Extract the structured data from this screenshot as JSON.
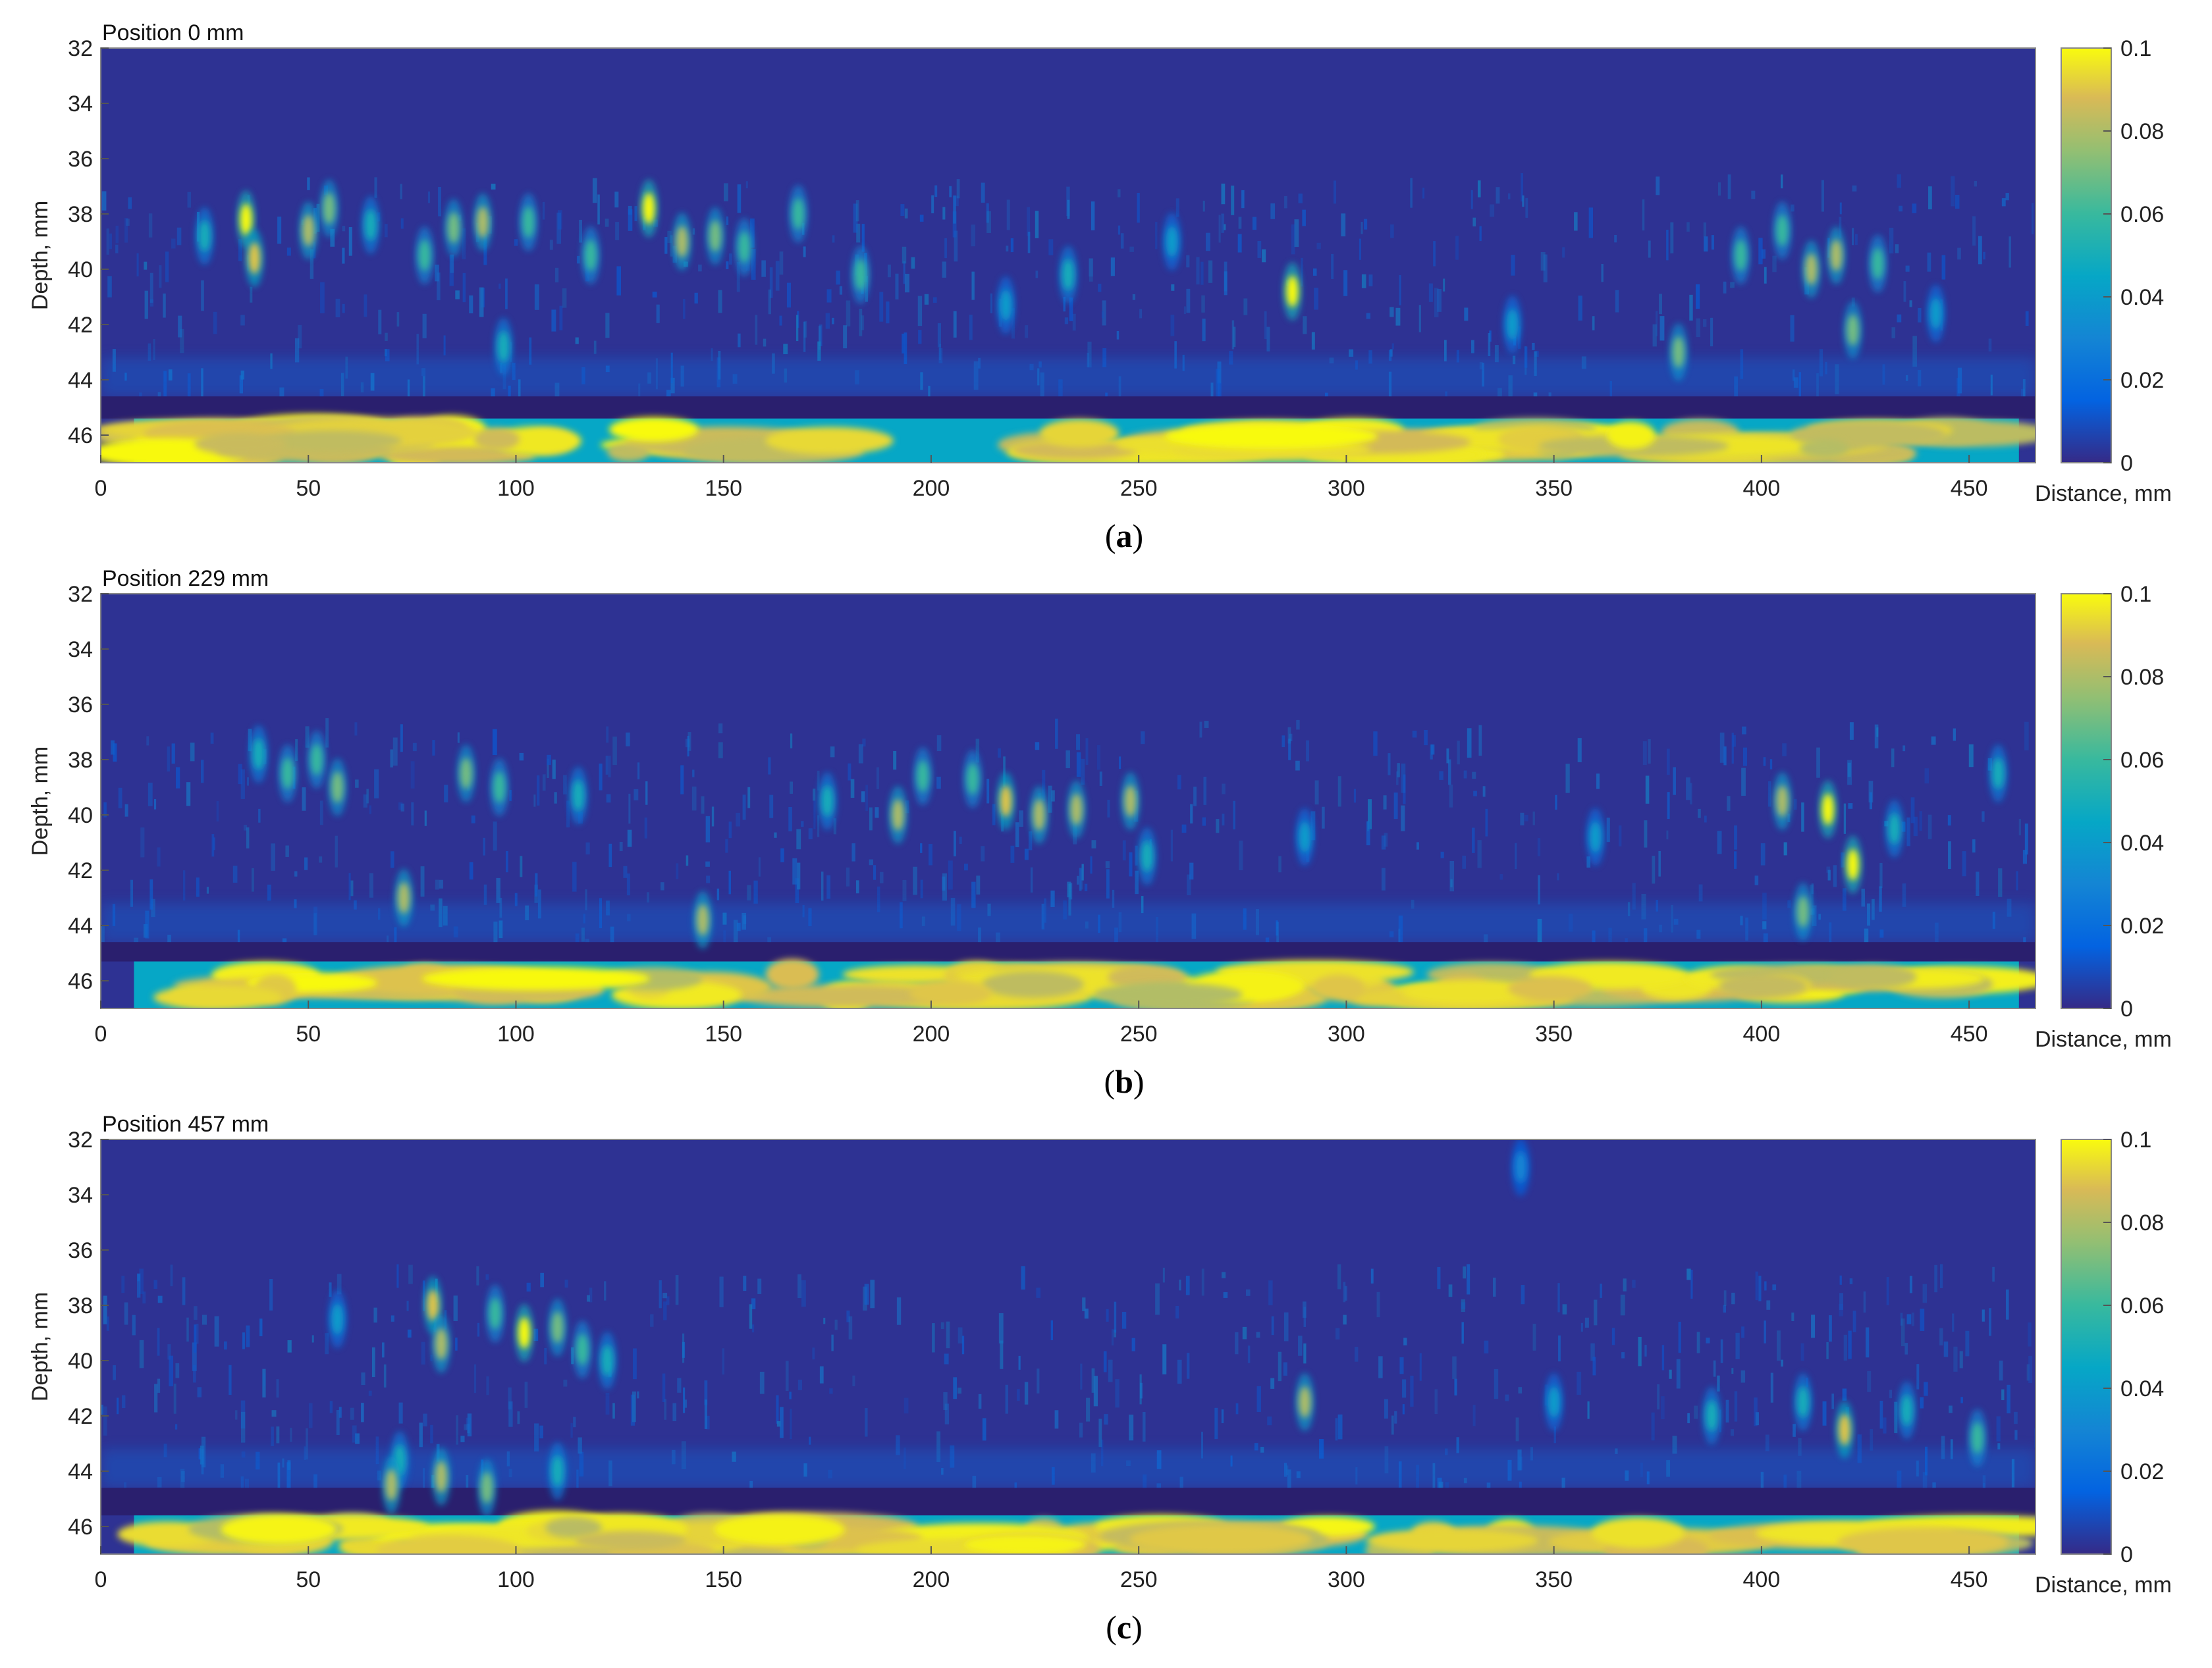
{
  "chart_data": [
    {
      "type": "heatmap",
      "title": "Position 0 mm",
      "caption": "a",
      "xlabel": "Distance, mm",
      "ylabel": "Depth, mm",
      "xlim": [
        0,
        466
      ],
      "ylim": [
        32,
        47
      ],
      "y_reversed": true,
      "xticks": [
        0,
        50,
        100,
        150,
        200,
        250,
        300,
        350,
        400,
        450
      ],
      "yticks": [
        32,
        34,
        36,
        38,
        40,
        42,
        44,
        46
      ],
      "colorbar": {
        "range": [
          0,
          0.1
        ],
        "ticks": [
          0,
          0.02,
          0.04,
          0.06,
          0.08,
          0.1
        ],
        "tick_labels": [
          "0",
          "0.02",
          "0.04",
          "0.06",
          "0.08",
          "0.1"
        ],
        "colormap": "parula"
      },
      "backwall_depth": [
        45.4,
        47
      ],
      "features": [
        {
          "x": 35,
          "y": 38.2,
          "v": 0.1
        },
        {
          "x": 37,
          "y": 39.6,
          "v": 0.09
        },
        {
          "x": 25,
          "y": 38.8,
          "v": 0.05
        },
        {
          "x": 50,
          "y": 38.6,
          "v": 0.08
        },
        {
          "x": 55,
          "y": 37.8,
          "v": 0.07
        },
        {
          "x": 65,
          "y": 38.4,
          "v": 0.05
        },
        {
          "x": 78,
          "y": 39.5,
          "v": 0.06
        },
        {
          "x": 85,
          "y": 38.5,
          "v": 0.07
        },
        {
          "x": 92,
          "y": 38.3,
          "v": 0.08
        },
        {
          "x": 103,
          "y": 38.3,
          "v": 0.06
        },
        {
          "x": 97,
          "y": 42.8,
          "v": 0.05
        },
        {
          "x": 118,
          "y": 39.5,
          "v": 0.06
        },
        {
          "x": 132,
          "y": 37.8,
          "v": 0.1
        },
        {
          "x": 140,
          "y": 39.0,
          "v": 0.08
        },
        {
          "x": 148,
          "y": 38.8,
          "v": 0.07
        },
        {
          "x": 155,
          "y": 39.2,
          "v": 0.06
        },
        {
          "x": 168,
          "y": 38.0,
          "v": 0.06
        },
        {
          "x": 183,
          "y": 40.2,
          "v": 0.06
        },
        {
          "x": 218,
          "y": 41.3,
          "v": 0.04
        },
        {
          "x": 233,
          "y": 40.2,
          "v": 0.05
        },
        {
          "x": 258,
          "y": 39.0,
          "v": 0.04
        },
        {
          "x": 287,
          "y": 40.8,
          "v": 0.1
        },
        {
          "x": 340,
          "y": 42.0,
          "v": 0.04
        },
        {
          "x": 380,
          "y": 43.0,
          "v": 0.07
        },
        {
          "x": 395,
          "y": 39.5,
          "v": 0.06
        },
        {
          "x": 405,
          "y": 38.6,
          "v": 0.06
        },
        {
          "x": 412,
          "y": 40.0,
          "v": 0.08
        },
        {
          "x": 418,
          "y": 39.5,
          "v": 0.08
        },
        {
          "x": 422,
          "y": 42.2,
          "v": 0.07
        },
        {
          "x": 428,
          "y": 39.8,
          "v": 0.06
        },
        {
          "x": 442,
          "y": 41.6,
          "v": 0.04
        }
      ]
    },
    {
      "type": "heatmap",
      "title": "Position 229 mm",
      "caption": "b",
      "xlabel": "Distance, mm",
      "ylabel": "Depth, mm",
      "xlim": [
        0,
        466
      ],
      "ylim": [
        32,
        47
      ],
      "y_reversed": true,
      "xticks": [
        0,
        50,
        100,
        150,
        200,
        250,
        300,
        350,
        400,
        450
      ],
      "yticks": [
        32,
        34,
        36,
        38,
        40,
        42,
        44,
        46
      ],
      "colorbar": {
        "range": [
          0,
          0.1
        ],
        "ticks": [
          0,
          0.02,
          0.04,
          0.06,
          0.08,
          0.1
        ],
        "tick_labels": [
          "0",
          "0.02",
          "0.04",
          "0.06",
          "0.08",
          "0.1"
        ],
        "colormap": "parula"
      },
      "backwall_depth": [
        45.3,
        47
      ],
      "features": [
        {
          "x": 38,
          "y": 37.8,
          "v": 0.05
        },
        {
          "x": 45,
          "y": 38.5,
          "v": 0.06
        },
        {
          "x": 52,
          "y": 38.0,
          "v": 0.06
        },
        {
          "x": 57,
          "y": 39.0,
          "v": 0.07
        },
        {
          "x": 73,
          "y": 43.0,
          "v": 0.08
        },
        {
          "x": 88,
          "y": 38.5,
          "v": 0.07
        },
        {
          "x": 96,
          "y": 39.0,
          "v": 0.06
        },
        {
          "x": 115,
          "y": 39.3,
          "v": 0.05
        },
        {
          "x": 145,
          "y": 43.8,
          "v": 0.08
        },
        {
          "x": 175,
          "y": 39.5,
          "v": 0.05
        },
        {
          "x": 192,
          "y": 40.0,
          "v": 0.08
        },
        {
          "x": 198,
          "y": 38.6,
          "v": 0.06
        },
        {
          "x": 210,
          "y": 38.7,
          "v": 0.06
        },
        {
          "x": 218,
          "y": 39.5,
          "v": 0.09
        },
        {
          "x": 226,
          "y": 40.0,
          "v": 0.08
        },
        {
          "x": 235,
          "y": 39.8,
          "v": 0.08
        },
        {
          "x": 248,
          "y": 39.5,
          "v": 0.08
        },
        {
          "x": 252,
          "y": 41.5,
          "v": 0.05
        },
        {
          "x": 290,
          "y": 40.8,
          "v": 0.04
        },
        {
          "x": 360,
          "y": 40.8,
          "v": 0.04
        },
        {
          "x": 405,
          "y": 39.5,
          "v": 0.08
        },
        {
          "x": 416,
          "y": 39.8,
          "v": 0.1
        },
        {
          "x": 422,
          "y": 41.8,
          "v": 0.1
        },
        {
          "x": 410,
          "y": 43.5,
          "v": 0.07
        },
        {
          "x": 432,
          "y": 40.5,
          "v": 0.05
        },
        {
          "x": 457,
          "y": 38.5,
          "v": 0.05
        }
      ]
    },
    {
      "type": "heatmap",
      "title": "Position 457 mm",
      "caption": "c",
      "xlabel": "Distance, mm",
      "ylabel": "Depth, mm",
      "xlim": [
        0,
        466
      ],
      "ylim": [
        32,
        47
      ],
      "y_reversed": true,
      "xticks": [
        0,
        50,
        100,
        150,
        200,
        250,
        300,
        350,
        400,
        450
      ],
      "yticks": [
        32,
        34,
        36,
        38,
        40,
        42,
        44,
        46
      ],
      "colorbar": {
        "range": [
          0,
          0.1
        ],
        "ticks": [
          0,
          0.02,
          0.04,
          0.06,
          0.08,
          0.1
        ],
        "tick_labels": [
          "0",
          "0.02",
          "0.04",
          "0.06",
          "0.08",
          "0.1"
        ],
        "colormap": "parula"
      },
      "backwall_depth": [
        45.6,
        47
      ],
      "features": [
        {
          "x": 57,
          "y": 38.5,
          "v": 0.04
        },
        {
          "x": 80,
          "y": 38.0,
          "v": 0.09
        },
        {
          "x": 82,
          "y": 39.4,
          "v": 0.08
        },
        {
          "x": 95,
          "y": 38.3,
          "v": 0.06
        },
        {
          "x": 102,
          "y": 39.0,
          "v": 0.1
        },
        {
          "x": 110,
          "y": 38.8,
          "v": 0.07
        },
        {
          "x": 116,
          "y": 39.6,
          "v": 0.06
        },
        {
          "x": 122,
          "y": 40.0,
          "v": 0.05
        },
        {
          "x": 110,
          "y": 44.0,
          "v": 0.05
        },
        {
          "x": 72,
          "y": 43.6,
          "v": 0.05
        },
        {
          "x": 70,
          "y": 44.5,
          "v": 0.08
        },
        {
          "x": 82,
          "y": 44.2,
          "v": 0.08
        },
        {
          "x": 93,
          "y": 44.6,
          "v": 0.07
        },
        {
          "x": 290,
          "y": 41.5,
          "v": 0.08
        },
        {
          "x": 350,
          "y": 41.5,
          "v": 0.04
        },
        {
          "x": 388,
          "y": 42.0,
          "v": 0.05
        },
        {
          "x": 410,
          "y": 41.5,
          "v": 0.05
        },
        {
          "x": 420,
          "y": 42.5,
          "v": 0.09
        },
        {
          "x": 435,
          "y": 41.8,
          "v": 0.05
        },
        {
          "x": 452,
          "y": 42.8,
          "v": 0.06
        },
        {
          "x": 342,
          "y": 33.0,
          "v": 0.03
        }
      ]
    }
  ]
}
